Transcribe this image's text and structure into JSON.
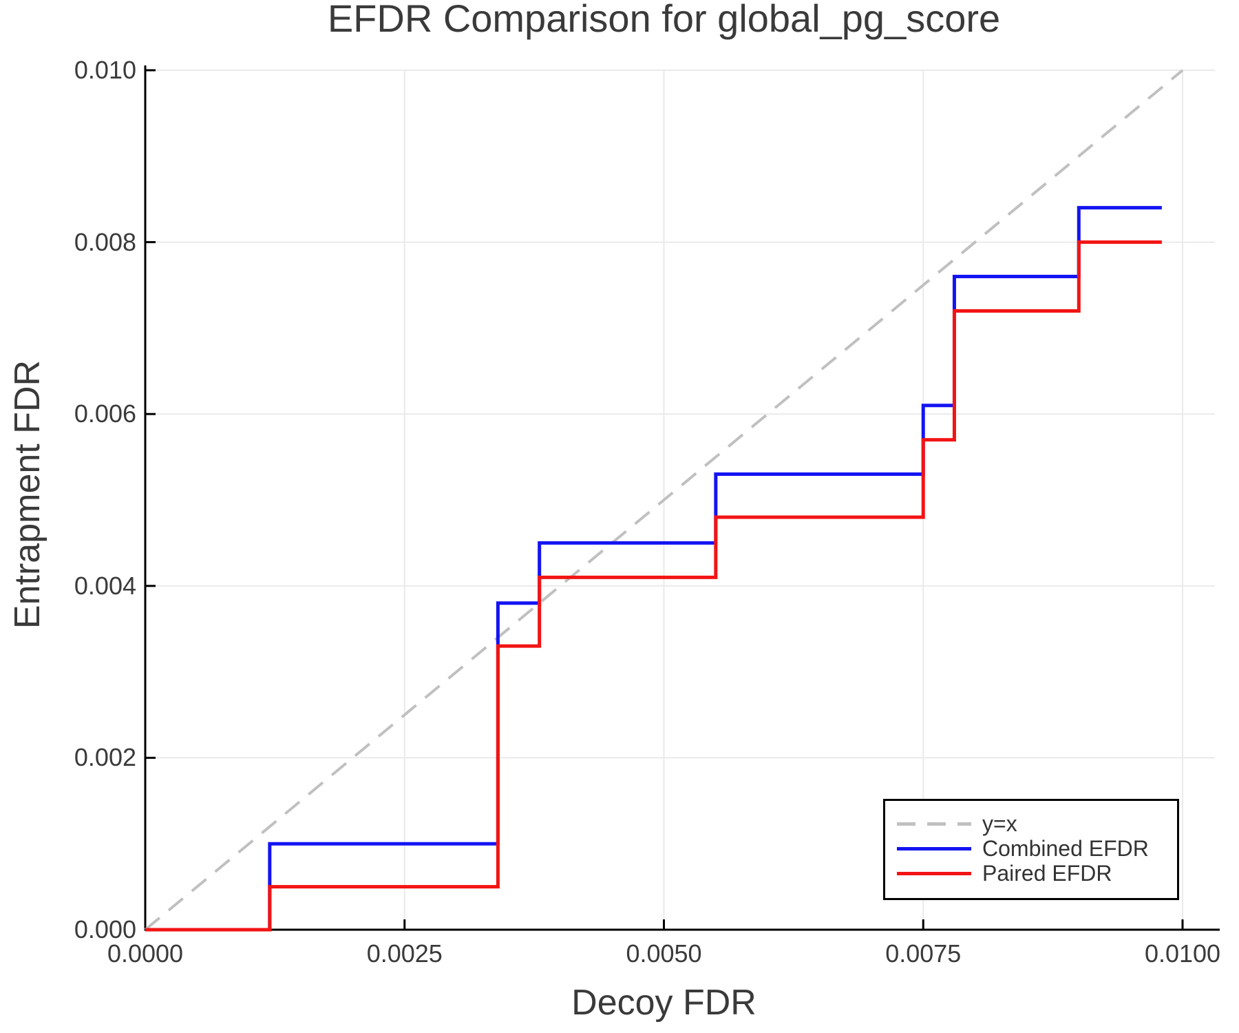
{
  "chart": {
    "title": "EFDR Comparison for global_pg_score",
    "xlabel": "Decoy FDR",
    "ylabel": "Entrapment FDR"
  },
  "chart_data": {
    "type": "line",
    "subtype": "step-post",
    "title": "EFDR Comparison for global_pg_score",
    "xlabel": "Decoy FDR",
    "ylabel": "Entrapment FDR",
    "xlim": [
      0.0,
      0.0103
    ],
    "ylim": [
      0.0,
      0.01
    ],
    "grid": true,
    "xticks": {
      "values": [
        0.0,
        0.0025,
        0.005,
        0.0075,
        0.01
      ],
      "labels": [
        "0.0000",
        "0.0025",
        "0.0050",
        "0.0075",
        "0.0100"
      ]
    },
    "yticks": {
      "values": [
        0.0,
        0.002,
        0.004,
        0.006,
        0.008,
        0.01
      ],
      "labels": [
        "0.000",
        "0.002",
        "0.004",
        "0.006",
        "0.008",
        "0.010"
      ]
    },
    "legend": {
      "position": "lower right",
      "entries": [
        "y=x",
        "Combined EFDR",
        "Paired EFDR"
      ]
    },
    "reference_line": {
      "name": "y=x",
      "style": "dashed",
      "color": "#C0C0C0",
      "x": [
        0.0,
        0.01
      ],
      "y": [
        0.0,
        0.01
      ]
    },
    "series": [
      {
        "name": "Combined EFDR",
        "color": "#1414F2",
        "step": "post",
        "x": [
          0.0,
          0.0012,
          0.0034,
          0.0038,
          0.0055,
          0.0075,
          0.0078,
          0.009
        ],
        "y": [
          0.0,
          0.001,
          0.0038,
          0.0045,
          0.0053,
          0.0061,
          0.0076,
          0.0084
        ],
        "x_end": 0.0098
      },
      {
        "name": "Paired EFDR",
        "color": "#F21414",
        "step": "post",
        "x": [
          0.0,
          0.0012,
          0.0034,
          0.0038,
          0.0055,
          0.0075,
          0.0078,
          0.009
        ],
        "y": [
          0.0,
          0.0005,
          0.0033,
          0.0041,
          0.0048,
          0.0057,
          0.0072,
          0.008
        ],
        "x_end": 0.0098
      }
    ],
    "colors": {
      "grid": "#EAEAEA",
      "spine": "#000000",
      "text": "#3A3A3A"
    }
  }
}
